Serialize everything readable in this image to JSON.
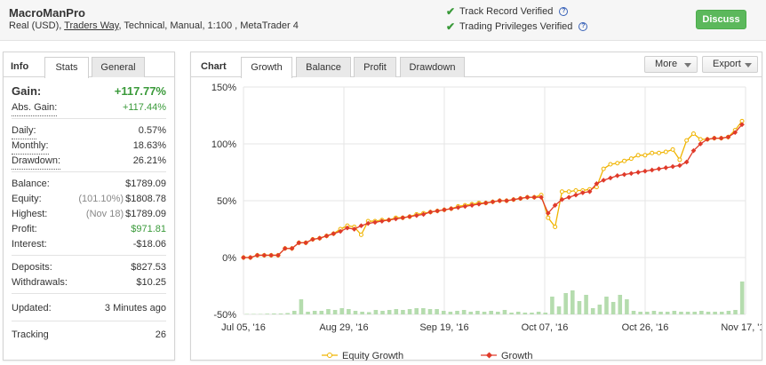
{
  "header": {
    "account_name": "MacroManPro",
    "account_prefix": "Real (USD),",
    "broker": "Traders Way",
    "account_suffix": ", Technical, Manual, 1:100 , MetaTrader 4",
    "track_record": "Track Record Verified",
    "trading_privileges": "Trading Privileges Verified",
    "discuss_label": "Discuss",
    "verified_color": "#3a9a3a"
  },
  "left_tabs": {
    "title": "Info",
    "stats": "Stats",
    "general": "General",
    "active": "Stats"
  },
  "stats": {
    "gain_label": "Gain:",
    "gain_value": "+117.77%",
    "abs_gain_label": "Abs. Gain:",
    "abs_gain_value": "+117.44%",
    "daily_label": "Daily:",
    "daily_value": "0.57%",
    "monthly_label": "Monthly:",
    "monthly_value": "18.63%",
    "drawdown_label": "Drawdown:",
    "drawdown_value": "26.21%",
    "balance_label": "Balance:",
    "balance_value": "$1789.09",
    "equity_label": "Equity:",
    "equity_pct": "(101.10%)",
    "equity_value": "$1808.78",
    "highest_label": "Highest:",
    "highest_date": "(Nov 18)",
    "highest_value": "$1789.09",
    "profit_label": "Profit:",
    "profit_value": "$971.81",
    "interest_label": "Interest:",
    "interest_value": "-$18.06",
    "deposits_label": "Deposits:",
    "deposits_value": "$827.53",
    "withdrawals_label": "Withdrawals:",
    "withdrawals_value": "$10.25",
    "updated_label": "Updated:",
    "updated_value": "3 Minutes ago",
    "tracking_label": "Tracking",
    "tracking_value": "26"
  },
  "chart_tabs": {
    "title": "Chart",
    "growth": "Growth",
    "balance": "Balance",
    "profit": "Profit",
    "drawdown": "Drawdown",
    "active": "Growth",
    "more": "More",
    "export": "Export"
  },
  "chart_data": {
    "type": "line",
    "ylabels": [
      "150%",
      "100%",
      "50%",
      "0%",
      "-50%"
    ],
    "ylim": [
      -50,
      150
    ],
    "xlabels": [
      "Jul 05, '16",
      "Aug 29, '16",
      "Sep 19, '16",
      "Oct 07, '16",
      "Oct 26, '16",
      "Nov 17, '16"
    ],
    "grid": true,
    "legend_position": "bottom",
    "colors": {
      "equity": "#f0b400",
      "growth": "#e03a2a",
      "bars": "#b5dcae"
    },
    "series": [
      {
        "name": "Equity Growth",
        "values": [
          0,
          0,
          2,
          2,
          2,
          2,
          8,
          8,
          13,
          13,
          16,
          17,
          19,
          21,
          25,
          28,
          27,
          20,
          32,
          32,
          33,
          33,
          35,
          35,
          36,
          38,
          39,
          40,
          41,
          42,
          43,
          45,
          46,
          47,
          48,
          48,
          49,
          50,
          50,
          51,
          52,
          53,
          53,
          55,
          35,
          27,
          58,
          58,
          59,
          59,
          60,
          62,
          78,
          82,
          83,
          85,
          87,
          90,
          90,
          92,
          92,
          93,
          95,
          86,
          103,
          109,
          104,
          104,
          105,
          105,
          106,
          112,
          120
        ]
      },
      {
        "name": "Growth",
        "values": [
          0,
          0,
          2,
          2,
          2,
          2,
          8,
          8,
          13,
          13,
          16,
          17,
          19,
          21,
          23,
          26,
          25,
          28,
          30,
          31,
          32,
          33,
          34,
          35,
          36,
          37,
          38,
          40,
          41,
          42,
          43,
          44,
          45,
          46,
          47,
          48,
          49,
          50,
          50,
          51,
          52,
          53,
          53,
          53,
          39,
          46,
          51,
          53,
          55,
          57,
          58,
          65,
          68,
          70,
          72,
          73,
          74,
          75,
          76,
          77,
          78,
          79,
          80,
          81,
          84,
          94,
          100,
          104,
          105,
          105,
          106,
          110,
          117
        ]
      }
    ],
    "bar_values": [
      0.5,
      0.5,
      0.5,
      0.8,
      1,
      1,
      1.5,
      4,
      17,
      3,
      4,
      4,
      6,
      5,
      7,
      6,
      4,
      3,
      2.5,
      5,
      4,
      5,
      6,
      5,
      6,
      7,
      7,
      6,
      6,
      4,
      3,
      4,
      5,
      3,
      4,
      3,
      4,
      3,
      5,
      2,
      3,
      2,
      2,
      3,
      2,
      20,
      9,
      24,
      27,
      15,
      22,
      7,
      11,
      20,
      14,
      22,
      17,
      4,
      3,
      3,
      4,
      3,
      3,
      4,
      3,
      3,
      3,
      4,
      3,
      3,
      3,
      4,
      5,
      37
    ]
  }
}
